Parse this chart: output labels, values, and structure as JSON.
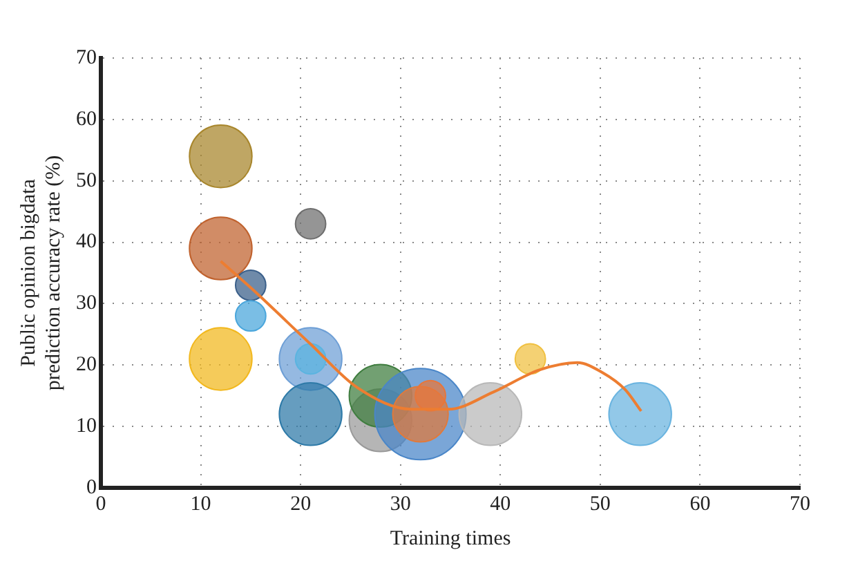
{
  "chart_data": {
    "type": "bubble",
    "xlabel": "Training times",
    "ylabel": "Public opinion bigdata prediction accuracy rate (%)",
    "xlim": [
      0,
      70
    ],
    "xticks": [
      0,
      10,
      20,
      30,
      40,
      50,
      60,
      70
    ],
    "ylim": [
      0,
      70
    ],
    "yticks": [
      0,
      10,
      20,
      30,
      40,
      50,
      60,
      70
    ],
    "grid": true,
    "series": [
      {
        "x": [
          12,
          12,
          21,
          15,
          15,
          12,
          21,
          21,
          21,
          28,
          28,
          32,
          32,
          33,
          39,
          43,
          54
        ],
        "values": [
          54,
          39,
          43,
          33,
          28,
          21,
          21,
          21,
          12,
          11,
          15,
          12,
          12,
          15,
          12,
          21,
          12
        ],
        "sizes": [
          0.47,
          0.47,
          0.11,
          0.11,
          0.11,
          0.47,
          0.47,
          0.11,
          0.47,
          0.47,
          0.47,
          1,
          0.37,
          0.11,
          0.47,
          0.11,
          0.47
        ],
        "colors": [
          "#a8862c",
          "#c0622e",
          "#6e6e6e",
          "#3a5f8a",
          "#4aa6dc",
          "#f2b81e",
          "#6e9fd6",
          "#5ab4e0",
          "#2e7aa8",
          "#9a9a9a",
          "#3f7d3f",
          "#4a86c8",
          "#e07a3c",
          "#e8763a",
          "#b8b8b8",
          "#f0c040",
          "#6ab4e0"
        ]
      },
      {
        "type": "line",
        "color": "#ed7d31",
        "marker": "none",
        "line_style": "solid",
        "x": [
          12,
          15,
          21,
          25.7,
          31.1,
          34.8,
          39.3,
          43.9,
          47.7,
          50.2,
          52.5,
          54.1
        ],
        "values": [
          36.9,
          32.6,
          23.4,
          16.3,
          12.8,
          12.8,
          15.6,
          19.2,
          20.4,
          18.8,
          16,
          12.5
        ]
      }
    ]
  }
}
